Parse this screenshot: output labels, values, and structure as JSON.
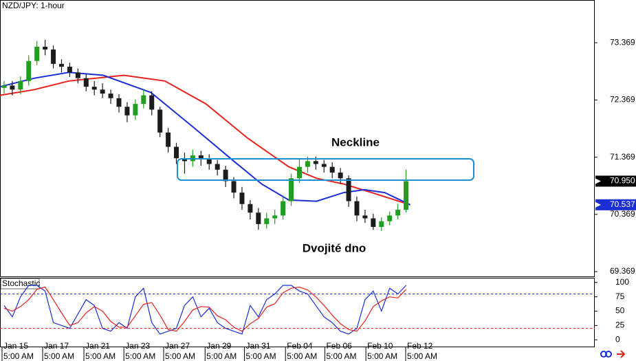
{
  "chart_data": {
    "type": "candlestick",
    "title": "NZD/JPY: 1-hour",
    "annotations": [
      "Neckline",
      "Dvojité dno"
    ],
    "xlim": [
      -0.5,
      72.0
    ],
    "ylim": [
      69.273,
      74.116
    ],
    "yticks": [
      73.369,
      72.369,
      71.369,
      70.369,
      69.369
    ],
    "xticks": [
      {
        "value": -0.25,
        "label": "Jan 15"
      },
      {
        "value": 4.7,
        "label": "Jan 17"
      },
      {
        "value": 9.73,
        "label": "Jan 21"
      },
      {
        "value": 14.6,
        "label": "Jan 23"
      },
      {
        "value": 19.45,
        "label": "Jan 27"
      },
      {
        "value": 24.5,
        "label": "Jan 29"
      },
      {
        "value": 29.3,
        "label": "Jan 31"
      },
      {
        "value": 34.3,
        "label": "Feb 04"
      },
      {
        "value": 39.1,
        "label": "Feb 06"
      },
      {
        "value": 44.1,
        "label": "Feb 10"
      },
      {
        "value": 48.95,
        "label": "Feb 12"
      }
    ],
    "xtick_times": [
      "5:00 AM",
      "5:00 AM",
      "5:00 AM",
      "5:00 AM",
      "5:00 AM",
      "5:00 AM",
      "5:00 AM",
      "5:00 AM",
      "5:00 AM",
      "5:00 AM",
      "5:00 AM"
    ],
    "up_color": "#1f9e1f",
    "down_color": "#1c1c1c",
    "open": [
      72.58,
      72.62,
      72.55,
      72.7,
      73.05,
      73.3,
      73.25,
      73.0,
      72.95,
      72.85,
      72.75,
      72.6,
      72.55,
      72.48,
      72.4,
      72.25,
      72.1,
      72.3,
      72.45,
      72.2,
      71.8,
      71.55,
      71.35,
      71.3,
      71.4,
      71.35,
      71.25,
      71.15,
      70.95,
      70.75,
      70.55,
      70.4,
      70.2,
      70.3,
      70.35,
      70.6,
      71.0,
      71.2,
      71.3,
      71.25,
      71.2,
      71.1,
      71.0,
      70.6,
      70.35,
      70.3,
      70.15,
      70.25,
      70.35,
      70.45
    ],
    "high": [
      72.7,
      72.7,
      72.78,
      73.15,
      73.4,
      73.42,
      73.32,
      73.08,
      73.02,
      72.92,
      72.82,
      72.7,
      72.66,
      72.55,
      72.47,
      72.33,
      72.38,
      72.55,
      72.52,
      72.25,
      71.88,
      71.62,
      71.45,
      71.5,
      71.48,
      71.42,
      71.32,
      71.22,
      71.02,
      70.85,
      70.62,
      70.48,
      70.4,
      70.45,
      70.7,
      71.08,
      71.35,
      71.38,
      71.38,
      71.32,
      71.28,
      71.18,
      71.05,
      70.68,
      70.45,
      70.38,
      70.32,
      70.42,
      70.55,
      71.15
    ],
    "low": [
      72.48,
      72.45,
      72.47,
      72.62,
      72.98,
      73.15,
      72.92,
      72.85,
      72.77,
      72.66,
      72.52,
      72.45,
      72.4,
      72.3,
      72.15,
      71.98,
      72.02,
      72.22,
      72.1,
      71.72,
      71.45,
      71.25,
      71.08,
      71.2,
      71.22,
      71.15,
      71.05,
      70.85,
      70.65,
      70.45,
      70.28,
      70.1,
      70.12,
      70.2,
      70.28,
      70.52,
      70.92,
      71.1,
      71.15,
      71.1,
      71.0,
      70.9,
      70.5,
      70.25,
      70.22,
      70.1,
      70.08,
      70.18,
      70.28,
      70.4
    ],
    "close": [
      72.62,
      72.55,
      72.7,
      73.05,
      73.3,
      73.25,
      73.0,
      72.95,
      72.85,
      72.75,
      72.6,
      72.55,
      72.48,
      72.4,
      72.25,
      72.1,
      72.3,
      72.45,
      72.2,
      71.8,
      71.55,
      71.35,
      71.3,
      71.4,
      71.35,
      71.25,
      71.15,
      70.95,
      70.75,
      70.55,
      70.4,
      70.2,
      70.3,
      70.35,
      70.6,
      71.0,
      71.2,
      71.3,
      71.25,
      71.2,
      71.1,
      71.0,
      70.6,
      70.35,
      70.3,
      70.15,
      70.25,
      70.35,
      70.45,
      70.95
    ],
    "moving_averages": [
      {
        "color": "#e8211c",
        "x": [
          -0.5,
          3.7,
          7.9,
          14.6,
          19.6,
          24.6,
          29.7,
          34.7,
          38.1,
          41.4,
          44.8,
          48.1,
          49.5
        ],
        "values": [
          72.45,
          72.55,
          72.7,
          72.8,
          72.7,
          72.3,
          71.7,
          71.2,
          71.0,
          70.9,
          70.75,
          70.6,
          70.537
        ]
      },
      {
        "color": "#1b2ed6",
        "x": [
          -0.5,
          3.7,
          7.9,
          12.1,
          17.9,
          23.0,
          28.0,
          31.4,
          34.7,
          38.1,
          41.4,
          43.9,
          46.4,
          49.5
        ],
        "values": [
          72.6,
          72.75,
          72.85,
          72.8,
          72.5,
          71.9,
          71.3,
          70.9,
          70.62,
          70.6,
          70.75,
          70.8,
          70.75,
          70.537
        ]
      }
    ],
    "price_tags": [
      {
        "value": 70.95,
        "label": "70.950",
        "color": "#000000"
      },
      {
        "value": 70.537,
        "label": "70.537",
        "color": "#1b2ed6"
      }
    ],
    "stochastic": {
      "title": "Stochastic",
      "ylim": [
        -13,
        107
      ],
      "yticks": [
        100,
        75,
        50,
        25,
        0
      ],
      "levels": [
        {
          "value": 80,
          "color": "#1b2ed6"
        },
        {
          "value": 20,
          "color": "#e8211c"
        }
      ],
      "series": [
        {
          "color": "#1b2ed6",
          "values": [
            60,
            40,
            75,
            95,
            95,
            85,
            30,
            25,
            20,
            45,
            70,
            60,
            20,
            15,
            30,
            20,
            75,
            90,
            30,
            10,
            15,
            20,
            60,
            75,
            40,
            55,
            30,
            20,
            15,
            10,
            60,
            40,
            70,
            80,
            95,
            95,
            85,
            80,
            60,
            40,
            30,
            15,
            10,
            20,
            70,
            85,
            50,
            90,
            80,
            95
          ]
        },
        {
          "color": "#e8211c",
          "values": [
            55,
            50,
            58,
            70,
            88,
            92,
            70,
            47,
            25,
            30,
            47,
            58,
            50,
            32,
            22,
            22,
            42,
            62,
            65,
            43,
            18,
            15,
            32,
            52,
            58,
            57,
            42,
            35,
            22,
            15,
            28,
            37,
            57,
            63,
            82,
            90,
            92,
            87,
            75,
            60,
            43,
            28,
            18,
            15,
            33,
            58,
            68,
            75,
            73,
            88
          ]
        }
      ]
    }
  }
}
